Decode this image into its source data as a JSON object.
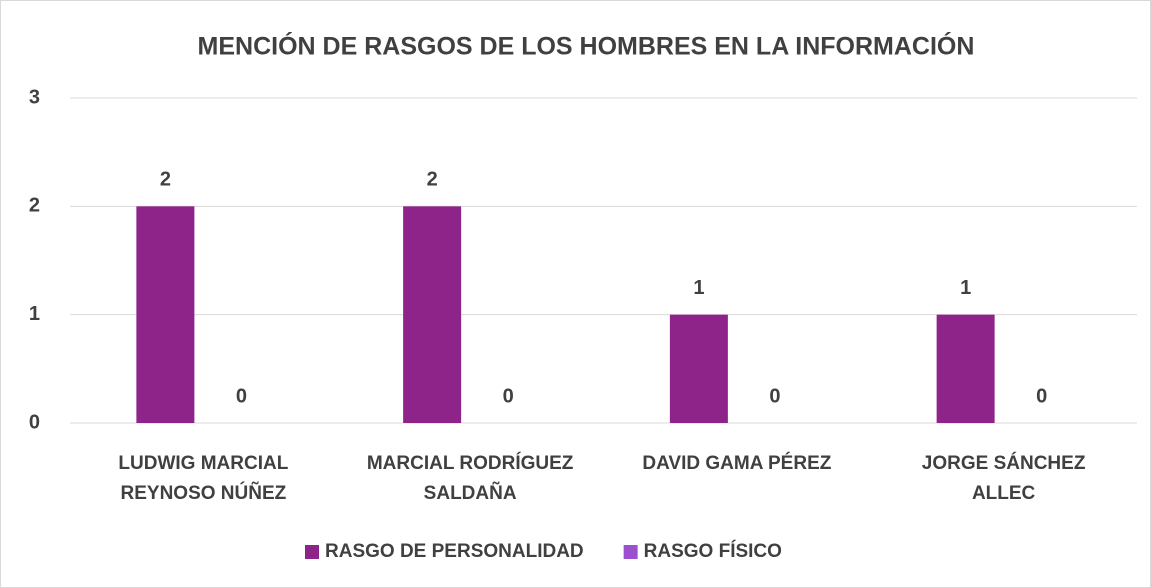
{
  "chart_data": {
    "type": "bar",
    "title": "MENCIÓN DE RASGOS DE LOS HOMBRES EN LA INFORMACIÓN",
    "categories": [
      "LUDWIG MARCIAL\nREYNOSO NÚÑEZ",
      "MARCIAL RODRÍGUEZ\nSALDAÑA",
      "DAVID GAMA PÉREZ",
      "JORGE SÁNCHEZ\nALLEC"
    ],
    "series": [
      {
        "name": "RASGO DE PERSONALIDAD",
        "color": "#8e248a",
        "values": [
          2,
          2,
          1,
          1
        ]
      },
      {
        "name": "RASGO FÍSICO",
        "color": "#9b50d0",
        "values": [
          0,
          0,
          0,
          0
        ]
      }
    ],
    "ylim": [
      0,
      3
    ],
    "yticks": [
      0,
      1,
      2,
      3
    ],
    "grid": true,
    "legend": "bottom"
  }
}
